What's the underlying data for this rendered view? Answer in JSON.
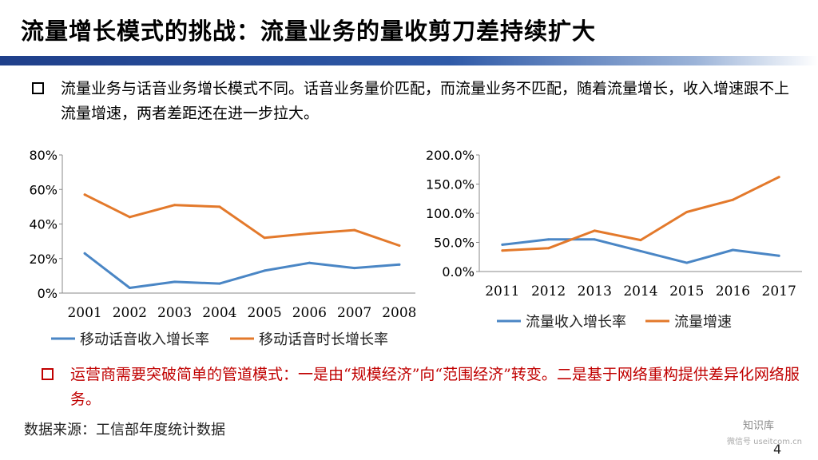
{
  "slide": {
    "title": "流量增长模式的挑战：流量业务的量收剪刀差持续扩大",
    "bullet1": "流量业务与话音业务增长模式不同。话音业务量价匹配，而流量业务不匹配，随着流量增长，收入增速跟不上流量增速，两者差距还在进一步拉大。",
    "bullet2": "运营商需要突破简单的管道模式：一是由“规模经济”向“范围经济”转变。二是基于网络重构提供差异化网络服务。",
    "source": "数据来源：工信部年度统计数据",
    "page_number": "4",
    "watermark": "知识库",
    "watermark_sub": "微信号 useitcom.cn"
  },
  "colors": {
    "blue": "#4a86c5",
    "orange": "#e3792b",
    "red": "#c00000",
    "title_bar": "#1f3f8a"
  },
  "chart_data": [
    {
      "type": "line",
      "categories": [
        "2001",
        "2002",
        "2003",
        "2004",
        "2005",
        "2006",
        "2007",
        "2008"
      ],
      "y_ticks": [
        "0%",
        "20%",
        "40%",
        "60%",
        "80%"
      ],
      "ylim": [
        0,
        80
      ],
      "series": [
        {
          "name": "移动话音收入增长率",
          "color": "#4a86c5",
          "values": [
            23,
            3,
            6.5,
            5.5,
            13,
            17.5,
            14.5,
            16.5
          ]
        },
        {
          "name": "移动话音时长增长率",
          "color": "#e3792b",
          "values": [
            57,
            44,
            51,
            50,
            32,
            34.5,
            36.5,
            27.5
          ]
        }
      ],
      "legend": "bottom",
      "grid": false
    },
    {
      "type": "line",
      "categories": [
        "2011",
        "2012",
        "2013",
        "2014",
        "2015",
        "2016",
        "2017"
      ],
      "y_ticks": [
        "0.0%",
        "50.0%",
        "100.0%",
        "150.0%",
        "200.0%"
      ],
      "ylim": [
        0,
        200
      ],
      "series": [
        {
          "name": "流量收入增长率",
          "color": "#4a86c5",
          "values": [
            46,
            55,
            55,
            35,
            15,
            37,
            27
          ]
        },
        {
          "name": "流量增速",
          "color": "#e3792b",
          "values": [
            36,
            40,
            70,
            54,
            102,
            123,
            162
          ]
        }
      ],
      "legend": "bottom",
      "grid": false
    }
  ]
}
